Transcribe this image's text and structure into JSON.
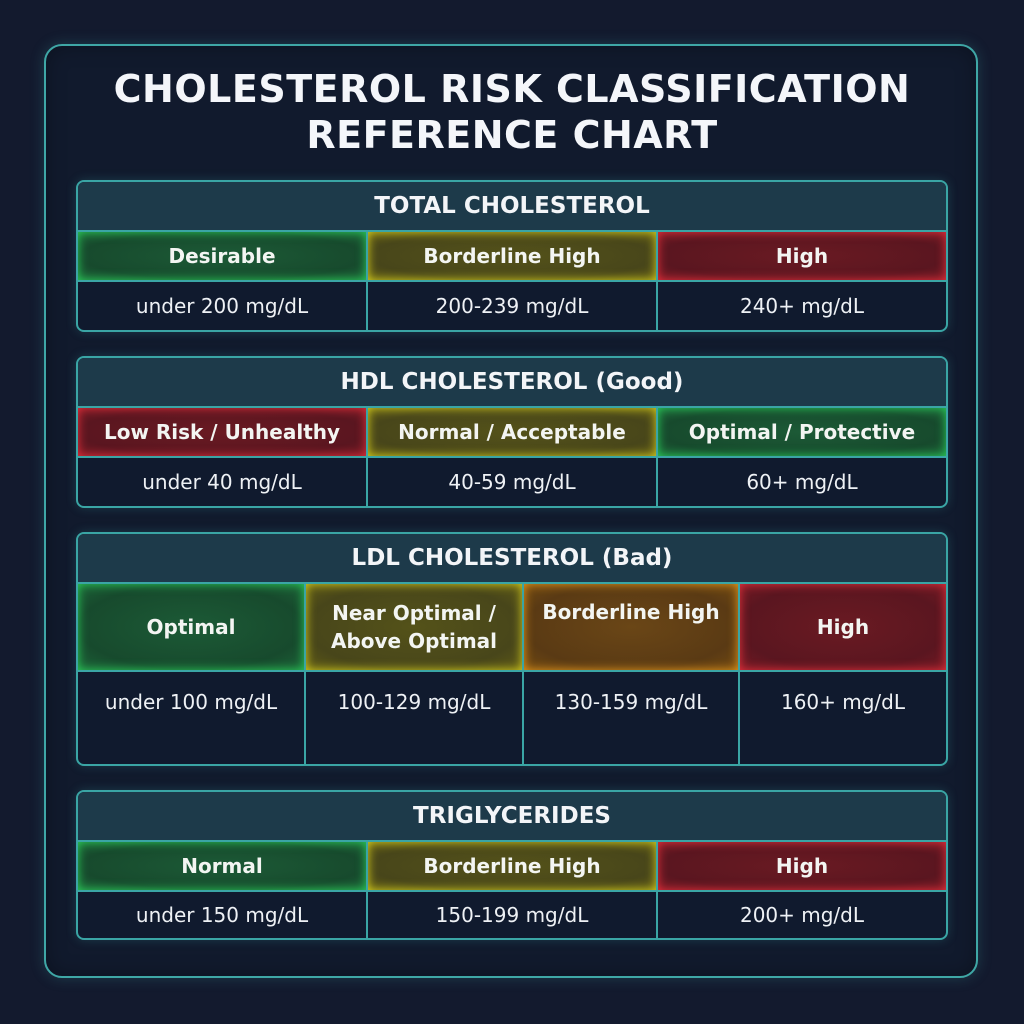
{
  "title": {
    "line1": "CHOLESTEROL RISK CLASSIFICATION",
    "line2": "REFERENCE CHART"
  },
  "sections": [
    {
      "header": "TOTAL CHOLESTEROL",
      "categories": [
        {
          "label": "Desirable",
          "color": "green"
        },
        {
          "label": "Borderline High",
          "color": "yellow"
        },
        {
          "label": "High",
          "color": "red"
        }
      ],
      "values": [
        "under 200 mg/dL",
        "200-239 mg/dL",
        "240+ mg/dL"
      ]
    },
    {
      "header": "HDL CHOLESTEROL (Good)",
      "categories": [
        {
          "label": "Low Risk / Unhealthy",
          "color": "red"
        },
        {
          "label": "Normal / Acceptable",
          "color": "yellow"
        },
        {
          "label": "Optimal / Protective",
          "color": "green"
        }
      ],
      "values": [
        "under 40 mg/dL",
        "40-59 mg/dL",
        "60+ mg/dL"
      ]
    },
    {
      "header": "LDL CHOLESTEROL (Bad)",
      "categories": [
        {
          "label": "Optimal",
          "color": "green"
        },
        {
          "label": "Near Optimal / Above Optimal",
          "color": "yellow"
        },
        {
          "label": "Borderline High",
          "color": "orange"
        },
        {
          "label": "High",
          "color": "red"
        }
      ],
      "values": [
        "under 100 mg/dL",
        "100-129 mg/dL",
        "130-159 mg/dL",
        "160+ mg/dL"
      ]
    },
    {
      "header": "TRIGLYCERIDES",
      "categories": [
        {
          "label": "Normal",
          "color": "green"
        },
        {
          "label": "Borderline High",
          "color": "yellow"
        },
        {
          "label": "High",
          "color": "red"
        }
      ],
      "values": [
        "under 150 mg/dL",
        "150-199 mg/dL",
        "200+ mg/dL"
      ]
    }
  ],
  "colors": {
    "background": "#131a2e",
    "border_accent": "#3aa5a5",
    "header_bg": "#1d3a4a",
    "green": "#1c5a36",
    "yellow": "#545219",
    "orange": "#6a4616",
    "red": "#6a1a22"
  }
}
